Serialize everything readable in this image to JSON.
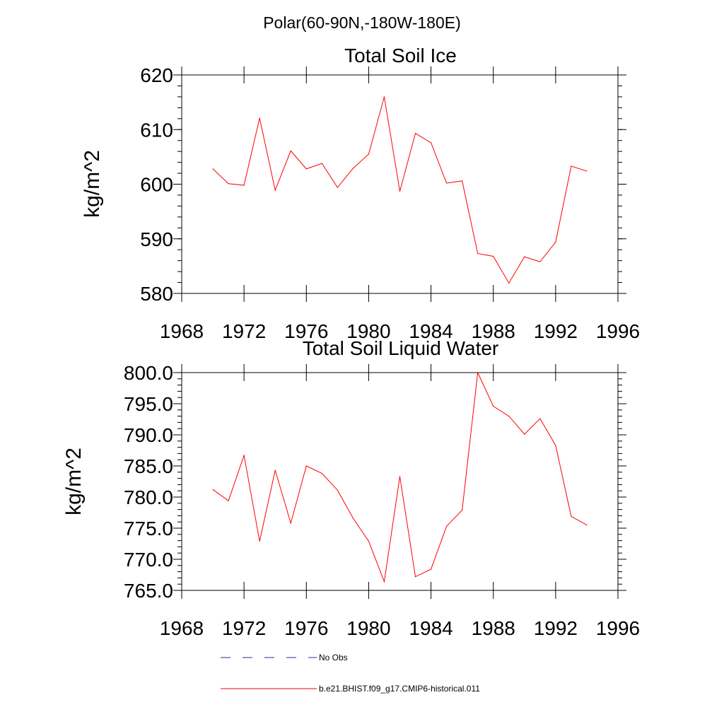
{
  "figure": {
    "suptitle": "Polar(60-90N,-180W-180E)"
  },
  "chart_data": [
    {
      "type": "line",
      "title": "Total Soil Ice",
      "xlabel": "",
      "ylabel": "kg/m^2",
      "xlim": [
        1968,
        1996
      ],
      "ylim": [
        580,
        620
      ],
      "xticks": [
        1968,
        1972,
        1976,
        1980,
        1984,
        1988,
        1992,
        1996
      ],
      "xtick_labels": [
        "1968",
        "1972",
        "1976",
        "1980",
        "1984",
        "1988",
        "1992",
        "1996"
      ],
      "yticks": [
        580,
        590,
        600,
        610,
        620
      ],
      "ytick_labels": [
        "580",
        "590",
        "600",
        "610",
        "620"
      ],
      "grid": false,
      "series": [
        {
          "name": "b.e21.BHIST.f09_g17.CMIP6-historical.011",
          "color": "#ff0000",
          "x": [
            1970,
            1971,
            1972,
            1973,
            1974,
            1975,
            1976,
            1977,
            1978,
            1979,
            1980,
            1981,
            1982,
            1983,
            1984,
            1985,
            1986,
            1987,
            1988,
            1989,
            1990,
            1991,
            1992,
            1993,
            1994
          ],
          "y": [
            602.8,
            600.1,
            599.8,
            612.1,
            598.9,
            606.1,
            602.8,
            603.8,
            599.4,
            602.9,
            605.5,
            616.0,
            598.7,
            609.3,
            607.6,
            600.2,
            600.6,
            587.3,
            586.8,
            581.9,
            586.7,
            585.8,
            589.4,
            603.3,
            602.4
          ]
        }
      ]
    },
    {
      "type": "line",
      "title": "Total Soil Liquid Water",
      "xlabel": "",
      "ylabel": "kg/m^2",
      "xlim": [
        1968,
        1996
      ],
      "ylim": [
        765,
        800
      ],
      "xticks": [
        1968,
        1972,
        1976,
        1980,
        1984,
        1988,
        1992,
        1996
      ],
      "xtick_labels": [
        "1968",
        "1972",
        "1976",
        "1980",
        "1984",
        "1988",
        "1992",
        "1996"
      ],
      "yticks": [
        765,
        770,
        775,
        780,
        785,
        790,
        795,
        800
      ],
      "ytick_labels": [
        "765.0",
        "770.0",
        "775.0",
        "780.0",
        "785.0",
        "790.0",
        "795.0",
        "800.0"
      ],
      "grid": false,
      "series": [
        {
          "name": "b.e21.BHIST.f09_g17.CMIP6-historical.011",
          "color": "#ff0000",
          "x": [
            1970,
            1971,
            1972,
            1973,
            1974,
            1975,
            1976,
            1977,
            1978,
            1979,
            1980,
            1981,
            1982,
            1983,
            1984,
            1985,
            1986,
            1987,
            1988,
            1989,
            1990,
            1991,
            1992,
            1993,
            1994
          ],
          "y": [
            781.2,
            779.4,
            786.7,
            772.9,
            784.3,
            775.8,
            785.0,
            783.8,
            781.1,
            776.6,
            772.9,
            766.4,
            783.3,
            767.2,
            768.4,
            775.3,
            777.9,
            800.0,
            794.6,
            793.0,
            790.1,
            792.6,
            788.3,
            776.9,
            775.5
          ]
        }
      ]
    }
  ],
  "legend": {
    "placement": "bottom",
    "items": [
      {
        "label": "No Obs",
        "color": "#2b2b8a",
        "style": "dashed"
      },
      {
        "label": "b.e21.BHIST.f09_g17.CMIP6-historical.011",
        "color": "#ff0000",
        "style": "solid"
      }
    ]
  }
}
